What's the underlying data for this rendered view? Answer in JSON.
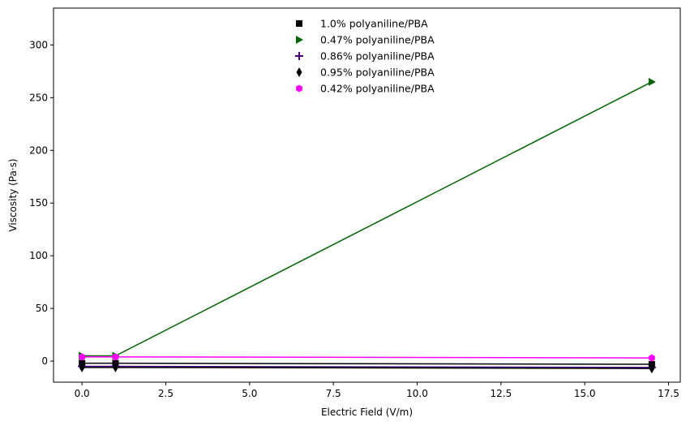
{
  "chart_data": {
    "type": "line",
    "title": "",
    "xlabel": "Electric Field (V/m)",
    "ylabel": "Viscosity (Pa·s)",
    "xlim": [
      -0.85,
      17.85
    ],
    "ylim": [
      -20,
      335
    ],
    "xticks": [
      0.0,
      2.5,
      5.0,
      7.5,
      10.0,
      12.5,
      15.0,
      17.5
    ],
    "xtick_labels": [
      "0.0",
      "2.5",
      "5.0",
      "7.5",
      "10.0",
      "12.5",
      "15.0",
      "17.5"
    ],
    "yticks": [
      0,
      50,
      100,
      150,
      200,
      250,
      300
    ],
    "ytick_labels": [
      "0",
      "50",
      "100",
      "150",
      "200",
      "250",
      "300"
    ],
    "grid": false,
    "legend_position": "top-center",
    "series": [
      {
        "name": "1.0% polyaniline/PBA",
        "marker": "square",
        "color": "#000000",
        "x": [
          0,
          1,
          17
        ],
        "y": [
          -2,
          -2,
          -3
        ]
      },
      {
        "name": "0.47% polyaniline/PBA",
        "marker": "triangle-right",
        "color": "#006400",
        "x": [
          0,
          1,
          17
        ],
        "y": [
          5,
          5,
          265
        ]
      },
      {
        "name": "0.86% polyaniline/PBA",
        "marker": "plus",
        "color": "#4b0082",
        "x": [
          0,
          1,
          17
        ],
        "y": [
          -5,
          -5,
          -6
        ]
      },
      {
        "name": "0.95% polyaniline/PBA",
        "marker": "thin-diamond",
        "color": "#000000",
        "x": [
          0,
          1,
          17
        ],
        "y": [
          -6,
          -6,
          -7
        ]
      },
      {
        "name": "0.42% polyaniline/PBA",
        "marker": "hexagon",
        "color": "#ff00ff",
        "x": [
          0,
          1,
          17
        ],
        "y": [
          4,
          4,
          3
        ]
      }
    ]
  }
}
